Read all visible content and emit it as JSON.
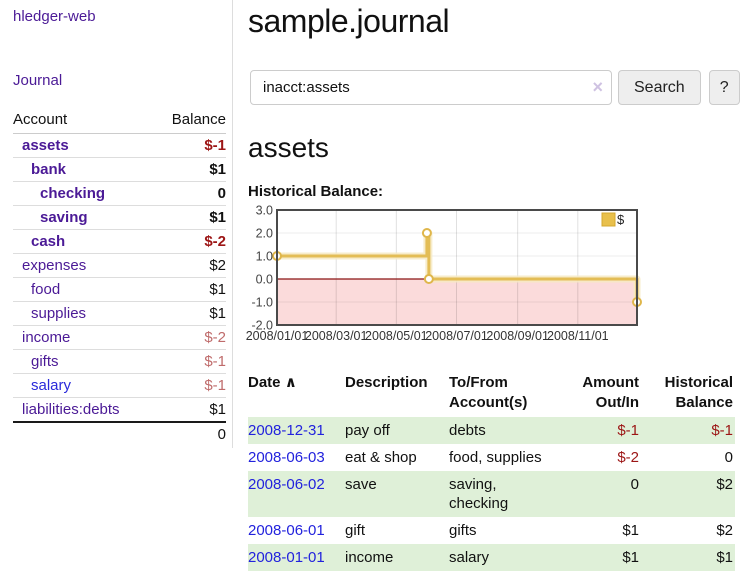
{
  "brand": "hledger-web",
  "nav": {
    "journal": "Journal"
  },
  "colors": {
    "link_purple": "#4b1a96",
    "link_blue": "#2a2ada",
    "date_link_blue": "#2222dd",
    "negative_strong": "#9c1515",
    "negative_muted": "#bf6b6b",
    "row_stripe_green": "#dff0d8"
  },
  "sidebar": {
    "header": {
      "account": "Account",
      "balance": "Balance"
    },
    "accounts": [
      {
        "name": "assets",
        "level": 1,
        "bold": true,
        "balance": "$-1",
        "tone": "neg-strong",
        "link_color": "purple"
      },
      {
        "name": "bank",
        "level": 2,
        "bold": true,
        "balance": "$1",
        "tone": "",
        "link_color": "purple"
      },
      {
        "name": "checking",
        "level": 3,
        "bold": true,
        "balance": "0",
        "tone": "",
        "link_color": "purple"
      },
      {
        "name": "saving",
        "level": 3,
        "bold": true,
        "balance": "$1",
        "tone": "",
        "link_color": "purple"
      },
      {
        "name": "cash",
        "level": 2,
        "bold": true,
        "balance": "$-2",
        "tone": "neg-strong",
        "link_color": "purple"
      },
      {
        "name": "expenses",
        "level": 1,
        "bold": false,
        "balance": "$2",
        "tone": "",
        "link_color": "purple"
      },
      {
        "name": "food",
        "level": 2,
        "bold": false,
        "balance": "$1",
        "tone": "",
        "link_color": "purple"
      },
      {
        "name": "supplies",
        "level": 2,
        "bold": false,
        "balance": "$1",
        "tone": "",
        "link_color": "purple"
      },
      {
        "name": "income",
        "level": 1,
        "bold": false,
        "balance": "$-2",
        "tone": "neg-muted",
        "link_color": "purple"
      },
      {
        "name": "gifts",
        "level": 2,
        "bold": false,
        "balance": "$-1",
        "tone": "neg-muted",
        "link_color": "purple"
      },
      {
        "name": "salary",
        "level": 2,
        "bold": false,
        "balance": "$-1",
        "tone": "neg-muted",
        "link_color": "blue"
      },
      {
        "name": "liabilities:debts",
        "level": 1,
        "bold": false,
        "balance": "$1",
        "tone": "",
        "link_color": "purple"
      }
    ],
    "total": "0"
  },
  "main": {
    "title": "sample.journal",
    "search": {
      "value": "inacct:assets",
      "clear_icon": "×",
      "button_label": "Search",
      "help_label": "?"
    },
    "account_heading": "assets",
    "chart_heading": "Historical Balance:"
  },
  "chart_data": {
    "type": "line",
    "step": true,
    "title": "Historical Balance:",
    "legend": "$",
    "legend_position": "top-right",
    "ylim": [
      -2,
      3
    ],
    "yticks": [
      3.0,
      2.0,
      1.0,
      0.0,
      -1.0,
      -2.0
    ],
    "xtick_labels": [
      "2008/01/01",
      "2008/03/01",
      "2008/05/01",
      "2008/07/01",
      "2008/09/01",
      "2008/11/01"
    ],
    "xtick_dates": [
      "2008-01-01",
      "2008-03-01",
      "2008-05-01",
      "2008-07-01",
      "2008-09-01",
      "2008-11-01"
    ],
    "xrange": [
      "2008-01-01",
      "2008-12-31"
    ],
    "series": [
      {
        "name": "$",
        "points": [
          [
            "2008-01-01",
            1
          ],
          [
            "2008-06-01",
            2
          ],
          [
            "2008-06-03",
            0
          ],
          [
            "2008-12-31",
            -1
          ]
        ]
      }
    ],
    "grid": true,
    "negative_region_shaded": true,
    "colors": {
      "line": "#e3bd55",
      "line_halo": "#f6e9c2",
      "marker_fill": "#ffffff",
      "marker_stroke": "#dfb64a",
      "negative_area": "#fbdbdb",
      "zero_line": "#8b1414",
      "border": "#4a4a4a",
      "legend_swatch": "#e8c04c",
      "tick_text": "#444444"
    }
  },
  "register": {
    "headers": {
      "date": "Date",
      "sort_icon": "∧",
      "description": "Description",
      "accounts": "To/From Account(s)",
      "amount": "Amount Out/In",
      "balance": "Historical Balance"
    },
    "rows": [
      {
        "date": "2008-12-31",
        "description": "pay off",
        "accounts": "debts",
        "amount": "$-1",
        "balance": "$-1"
      },
      {
        "date": "2008-06-03",
        "description": "eat & shop",
        "accounts": "food, supplies",
        "amount": "$-2",
        "balance": "0"
      },
      {
        "date": "2008-06-02",
        "description": "save",
        "accounts": "saving, checking",
        "amount": "0",
        "balance": "$2"
      },
      {
        "date": "2008-06-01",
        "description": "gift",
        "accounts": "gifts",
        "amount": "$1",
        "balance": "$2"
      },
      {
        "date": "2008-01-01",
        "description": "income",
        "accounts": "salary",
        "amount": "$1",
        "balance": "$1"
      }
    ]
  }
}
